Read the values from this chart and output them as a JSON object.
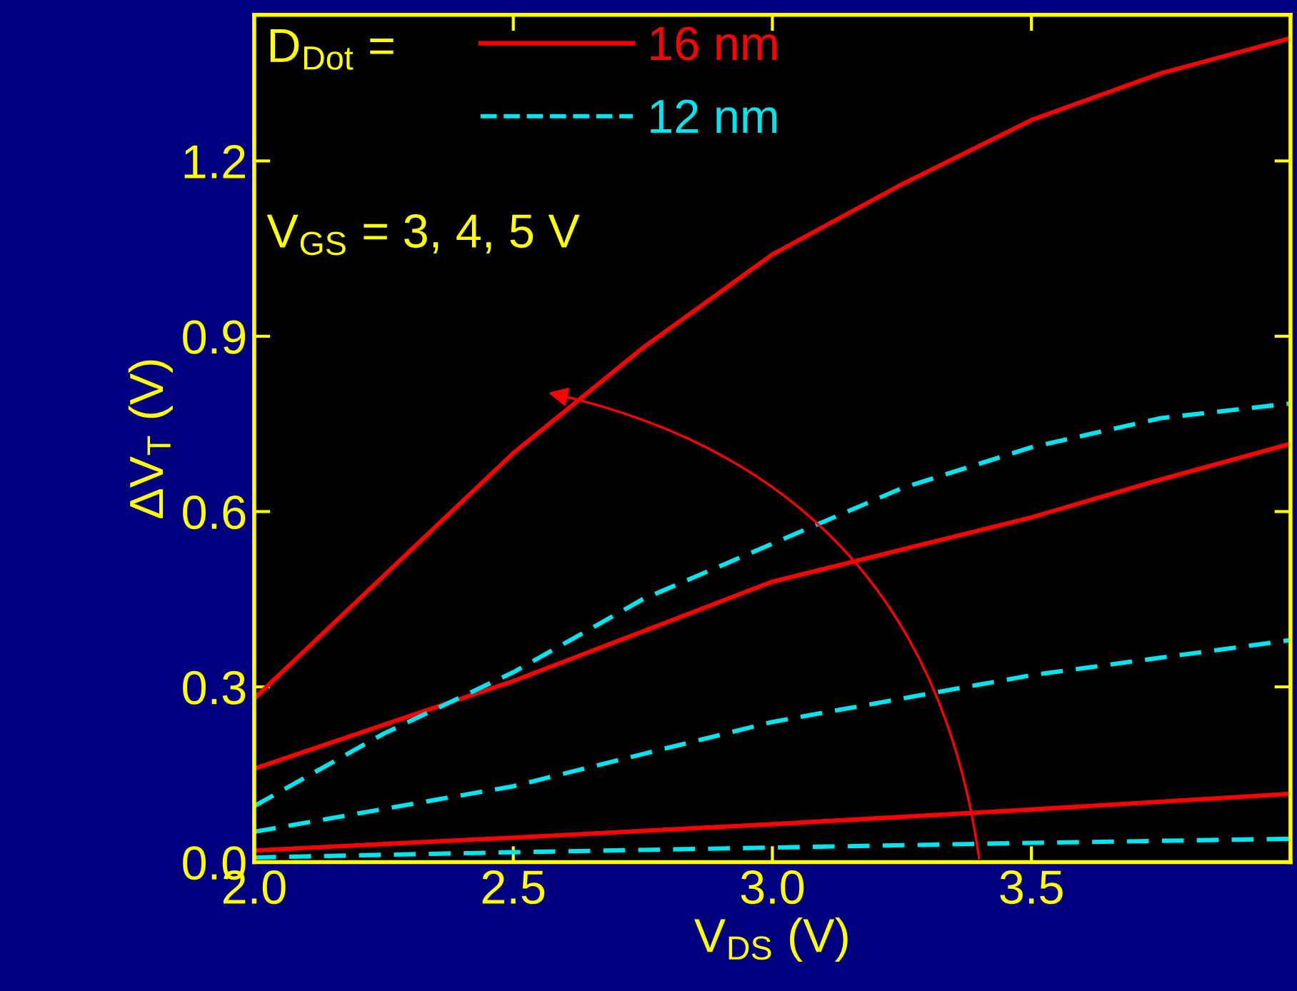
{
  "chart_data": {
    "type": "line",
    "xlabel": "V$_{DS}$ (V)",
    "ylabel": "ΔV$_{T}$ (V)",
    "legend_title": "D$_{Dot}$ =",
    "legend": "top left",
    "grid": false,
    "xlim": [
      2.0,
      4.0
    ],
    "xticks": [
      {
        "value": 2,
        "label": "2.0"
      },
      2.5,
      {
        "value": 3,
        "label": "3.0"
      },
      3.5
    ],
    "ylim": [
      0,
      1.45
    ],
    "yticks": [
      {
        "value": 0,
        "label": "0.0"
      },
      0.3,
      0.6,
      0.9,
      1.2
    ],
    "annotations": [
      "V$_{GS}$ = 3, 4, 5 V"
    ],
    "series": [
      {
        "name": "16 nm",
        "color": "#ff0000",
        "line_style": "solid",
        "x": [
          2.0,
          2.25,
          2.5,
          2.75,
          3.0,
          3.25,
          3.5,
          3.75,
          4.0
        ],
        "values": [
          0.28,
          0.49,
          0.7,
          0.88,
          1.04,
          1.16,
          1.27,
          1.35,
          1.41
        ]
      },
      {
        "color": "#ff0000",
        "line_style": "solid",
        "x": [
          2.0,
          2.25,
          2.5,
          2.75,
          3.0,
          3.25,
          3.5,
          3.75,
          4.0
        ],
        "values": [
          0.16,
          0.235,
          0.31,
          0.395,
          0.48,
          0.535,
          0.59,
          0.655,
          0.716
        ]
      },
      {
        "color": "#ff0000",
        "line_style": "solid",
        "x": [
          2.0,
          2.5,
          3.0,
          3.5,
          4.0
        ],
        "values": [
          0.02,
          0.042,
          0.065,
          0.09,
          0.117
        ]
      },
      {
        "name": "12 nm",
        "color": "#00e5ee",
        "line_style": "dashed",
        "x": [
          2.0,
          2.25,
          2.5,
          2.75,
          3.0,
          3.25,
          3.5,
          3.75,
          4.0
        ],
        "values": [
          0.096,
          0.22,
          0.325,
          0.45,
          0.545,
          0.64,
          0.71,
          0.76,
          0.785
        ]
      },
      {
        "color": "#00e5ee",
        "line_style": "dashed",
        "x": [
          2.0,
          2.5,
          3.0,
          3.5,
          4.0
        ],
        "values": [
          0.052,
          0.13,
          0.24,
          0.32,
          0.38
        ]
      },
      {
        "color": "#00e5ee",
        "line_style": "dashed",
        "x": [
          2.0,
          2.5,
          3.0,
          3.5,
          4.0
        ],
        "values": [
          0.008,
          0.017,
          0.025,
          0.033,
          0.04
        ]
      }
    ]
  }
}
